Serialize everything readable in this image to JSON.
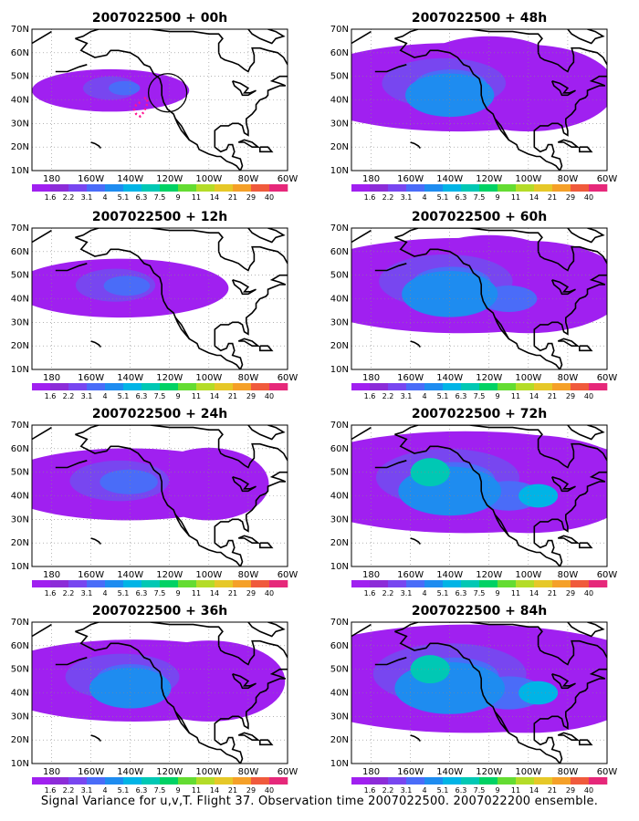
{
  "caption": "Signal Variance for u,v,T. Flight 37. Observation time 2007022500. 2007022200 ensemble.",
  "lon_labels": [
    "180",
    "160W",
    "140W",
    "120W",
    "100W",
    "80W",
    "60W"
  ],
  "lat_labels": [
    "10N",
    "20N",
    "30N",
    "40N",
    "50N",
    "60N",
    "70N"
  ],
  "colorbar": {
    "labels": [
      "1.6",
      "2.2",
      "3.1",
      "4",
      "5.1",
      "6.3",
      "7.5",
      "9",
      "11",
      "14",
      "21",
      "29",
      "40"
    ],
    "colors": [
      "#a020f0",
      "#8c2cd8",
      "#7846f0",
      "#4a6cf8",
      "#1e8cf0",
      "#00b4e6",
      "#00c8b4",
      "#00d264",
      "#64dc32",
      "#b4dc28",
      "#e6c828",
      "#f5a028",
      "#f05a3c",
      "#e6287a"
    ]
  },
  "panels": [
    {
      "title": "2007022500 + 00h",
      "intensity": 0.0
    },
    {
      "title": "2007022500 + 12h",
      "intensity": 0.25
    },
    {
      "title": "2007022500 + 24h",
      "intensity": 0.45
    },
    {
      "title": "2007022500 + 36h",
      "intensity": 0.6
    },
    {
      "title": "2007022500 + 48h",
      "intensity": 0.7
    },
    {
      "title": "2007022500 + 60h",
      "intensity": 0.8
    },
    {
      "title": "2007022500 + 72h",
      "intensity": 0.9
    },
    {
      "title": "2007022500 + 84h",
      "intensity": 1.0
    }
  ],
  "observation_marker": {
    "shape": "circle",
    "color": "#000000",
    "flight_track_color": "#ff1493"
  }
}
